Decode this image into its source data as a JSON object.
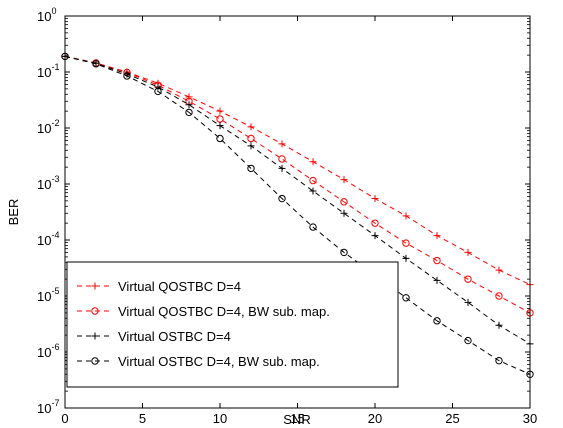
{
  "chart_data": {
    "type": "line",
    "xlabel": "SNR",
    "ylabel": "BER",
    "xlim": [
      0,
      30
    ],
    "ylim_exponent": [
      -7,
      0
    ],
    "y_scale": "log",
    "grid": false,
    "legend_position": "bottom-left",
    "x": [
      0,
      2,
      4,
      6,
      8,
      10,
      12,
      14,
      16,
      18,
      20,
      22,
      24,
      26,
      28,
      30
    ],
    "xticks": [
      "0",
      "5",
      "10",
      "15",
      "20",
      "25",
      "30"
    ],
    "yticks_base": "10",
    "yticks_exp": [
      "0",
      "-1",
      "-2",
      "-3",
      "-4",
      "-5",
      "-6",
      "-7"
    ],
    "series": [
      {
        "name": "Virtual QOSTBC D=4",
        "color": "#ff0000",
        "marker": "plus",
        "values": [
          0.19,
          0.145,
          0.1,
          0.063,
          0.036,
          0.02,
          0.0105,
          0.0052,
          0.0025,
          0.0012,
          0.00055,
          0.00027,
          0.00012,
          6e-05,
          2.9e-05,
          1.6e-05
        ]
      },
      {
        "name": "Virtual QOSTBC D=4, BW sub. map.",
        "color": "#ff0000",
        "marker": "circle",
        "values": [
          0.19,
          0.145,
          0.098,
          0.058,
          0.03,
          0.0145,
          0.0065,
          0.0028,
          0.00115,
          0.00048,
          0.0002,
          8.8e-05,
          4.3e-05,
          2e-05,
          1e-05,
          5e-06
        ]
      },
      {
        "name": "Virtual OSTBC D=4",
        "color": "#000000",
        "marker": "plus",
        "values": [
          0.19,
          0.143,
          0.092,
          0.054,
          0.026,
          0.011,
          0.0048,
          0.0019,
          0.00075,
          0.0003,
          0.00012,
          4.7e-05,
          1.9e-05,
          7.7e-06,
          3e-06,
          1.4e-06
        ]
      },
      {
        "name": "Virtual OSTBC D=4, BW sub. map.",
        "color": "#000000",
        "marker": "circle",
        "values": [
          0.19,
          0.14,
          0.085,
          0.045,
          0.019,
          0.0065,
          0.0019,
          0.00055,
          0.00017,
          6e-05,
          2.4e-05,
          9.3e-06,
          3.6e-06,
          1.6e-06,
          7e-07,
          4e-07
        ]
      }
    ]
  }
}
